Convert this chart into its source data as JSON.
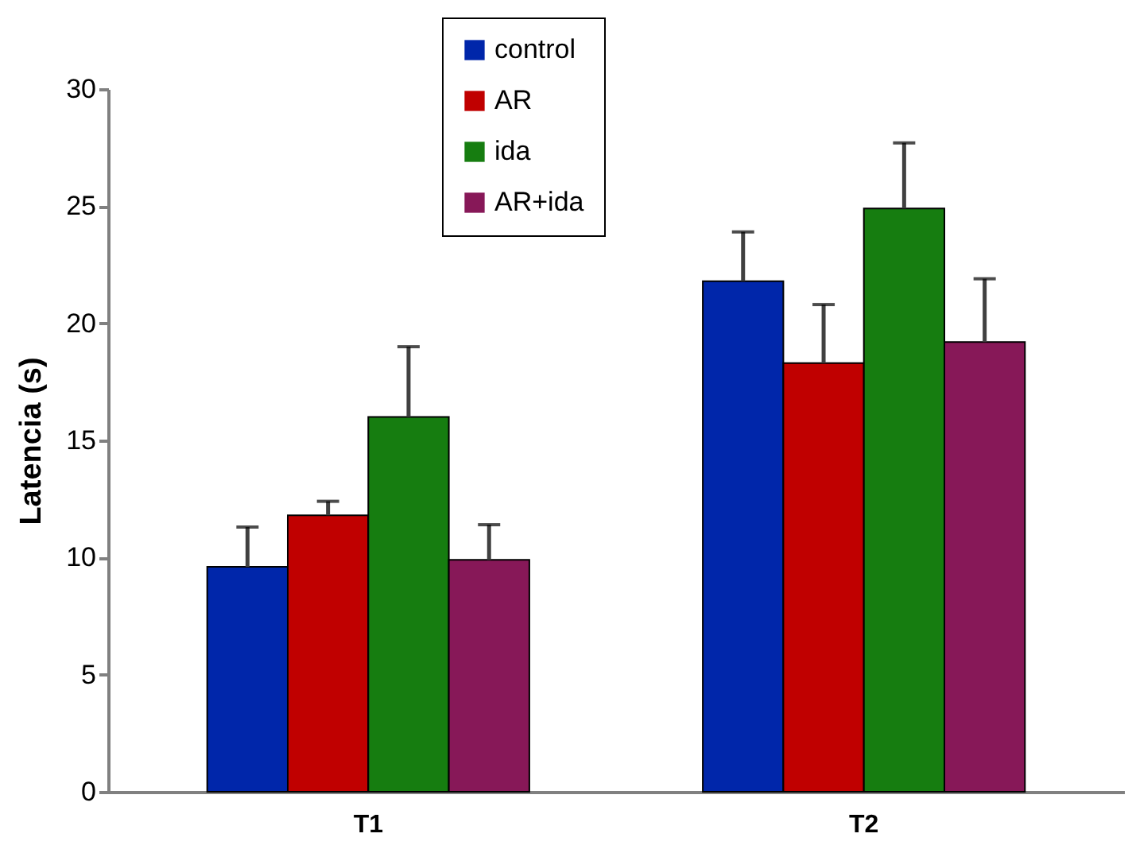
{
  "chart_data": {
    "type": "bar",
    "ylabel": "Latencia (s)",
    "categories": [
      "T1",
      "T2"
    ],
    "series": [
      {
        "name": "control",
        "color": "#0026aa",
        "values": [
          9.6,
          21.8
        ],
        "errors": [
          [
            9.6,
            11.3
          ],
          [
            21.8,
            23.9
          ]
        ]
      },
      {
        "name": "AR",
        "color": "#c00000",
        "values": [
          11.8,
          18.3
        ],
        "errors": [
          [
            11.8,
            12.4
          ],
          [
            18.3,
            20.8
          ]
        ]
      },
      {
        "name": "ida",
        "color": "#167d10",
        "values": [
          16.0,
          24.9
        ],
        "errors": [
          [
            16.0,
            19.0
          ],
          [
            24.9,
            27.7
          ]
        ]
      },
      {
        "name": "AR+ida",
        "color": "#871858",
        "values": [
          9.9,
          19.2
        ],
        "errors": [
          [
            9.9,
            11.4
          ],
          [
            19.2,
            21.9
          ]
        ]
      }
    ],
    "ylim": [
      0,
      30
    ],
    "yticks": [
      0,
      5,
      10,
      15,
      20,
      25,
      30
    ],
    "grid": false,
    "legend": "top"
  }
}
